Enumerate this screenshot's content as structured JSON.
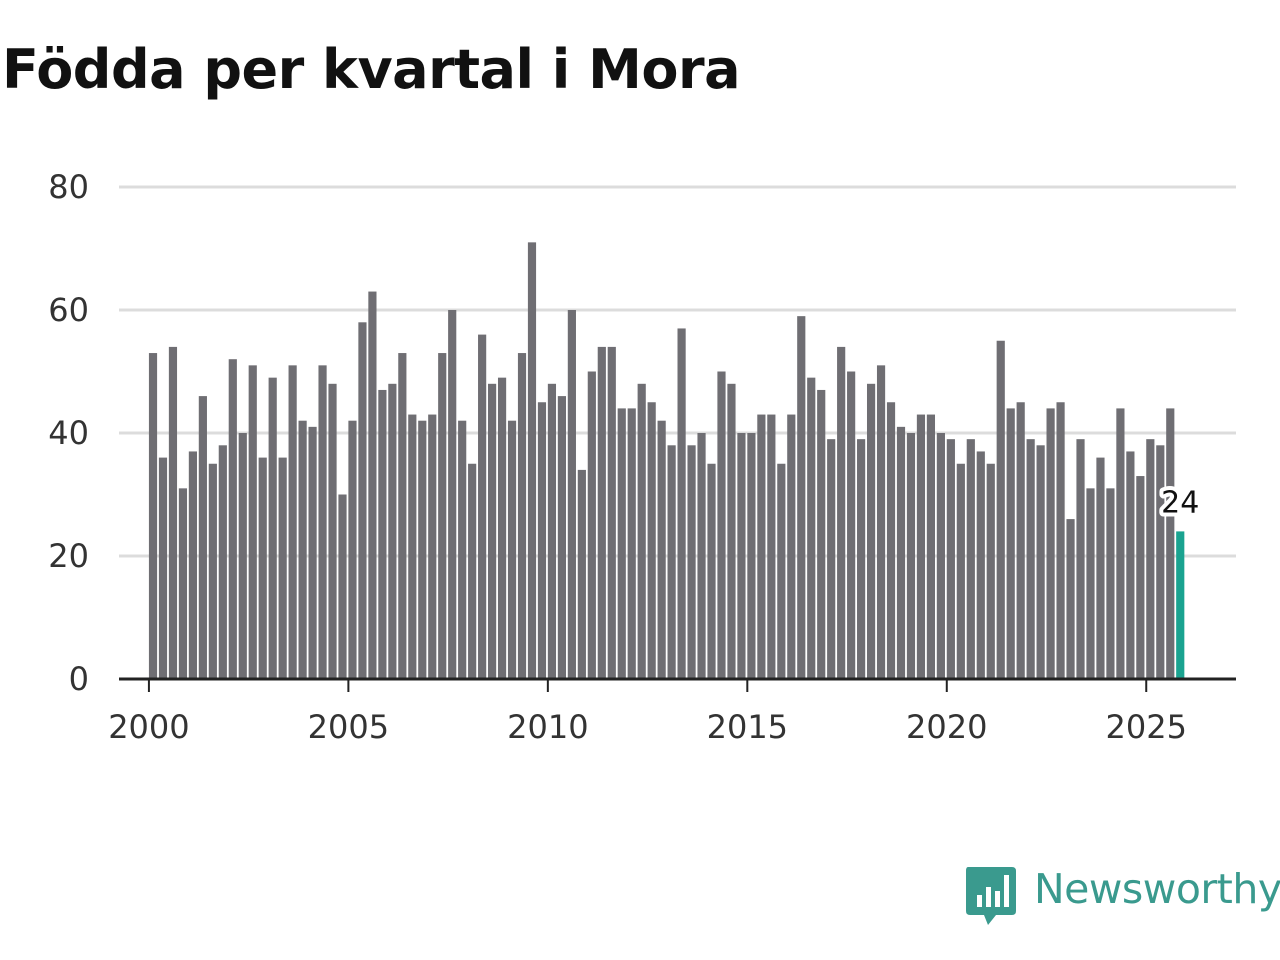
{
  "chart_data": {
    "type": "bar",
    "title": "Födda per kvartal i Mora",
    "xlabel": "",
    "ylabel": "",
    "x_start": 2000.0,
    "x_step": 0.25,
    "xlim": [
      1999.25,
      2027.25
    ],
    "ylim": [
      0,
      80
    ],
    "yticks": [
      0,
      20,
      40,
      60,
      80
    ],
    "xticks": [
      2000,
      2005,
      2010,
      2015,
      2020,
      2025
    ],
    "grid": true,
    "values": [
      53,
      36,
      54,
      31,
      37,
      46,
      35,
      38,
      52,
      40,
      51,
      36,
      49,
      36,
      51,
      42,
      41,
      51,
      48,
      30,
      42,
      58,
      63,
      47,
      48,
      53,
      43,
      42,
      43,
      53,
      60,
      42,
      35,
      56,
      48,
      49,
      42,
      53,
      71,
      45,
      48,
      46,
      60,
      34,
      50,
      54,
      54,
      44,
      44,
      48,
      45,
      42,
      38,
      57,
      38,
      40,
      35,
      50,
      48,
      40,
      40,
      43,
      43,
      35,
      43,
      59,
      49,
      47,
      39,
      54,
      50,
      39,
      48,
      51,
      45,
      41,
      40,
      43,
      43,
      40,
      39,
      35,
      39,
      37,
      35,
      55,
      44,
      45,
      39,
      38,
      44,
      45,
      26,
      39,
      31,
      36,
      31,
      44,
      37,
      33,
      39,
      38,
      44,
      24
    ],
    "highlight": {
      "index": 103,
      "label": "24"
    },
    "colors": {
      "bar": "#6f6e73",
      "highlight": "#1aa390",
      "grid": "#dcdcdc",
      "axis": "#222222"
    }
  },
  "logo": {
    "text": "Newsworthy",
    "icon": "newsworthy-chart-icon",
    "color": "#3a9a8e"
  }
}
